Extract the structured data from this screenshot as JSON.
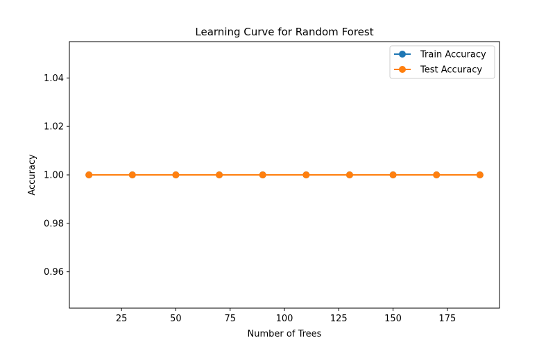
{
  "chart_data": {
    "type": "line",
    "title": "Learning Curve for Random Forest",
    "xlabel": "Number of Trees",
    "ylabel": "Accuracy",
    "x": [
      10,
      30,
      50,
      70,
      90,
      110,
      130,
      150,
      170,
      190
    ],
    "xlim": [
      1,
      199
    ],
    "ylim": [
      0.945,
      1.055
    ],
    "xticks": [
      25,
      50,
      75,
      100,
      125,
      150,
      175
    ],
    "xtick_labels": [
      "25",
      "50",
      "75",
      "100",
      "125",
      "150",
      "175"
    ],
    "yticks": [
      0.96,
      0.98,
      1.0,
      1.02,
      1.04
    ],
    "ytick_labels": [
      "0.96",
      "0.98",
      "1.00",
      "1.02",
      "1.04"
    ],
    "grid": false,
    "legend_position": "top-right",
    "series": [
      {
        "name": "Train Accuracy",
        "color": "#1f77b4",
        "marker": "circle",
        "values": [
          1.0,
          1.0,
          1.0,
          1.0,
          1.0,
          1.0,
          1.0,
          1.0,
          1.0,
          1.0
        ]
      },
      {
        "name": "Test Accuracy",
        "color": "#ff7f0e",
        "marker": "circle",
        "values": [
          1.0,
          1.0,
          1.0,
          1.0,
          1.0,
          1.0,
          1.0,
          1.0,
          1.0,
          1.0
        ]
      }
    ]
  }
}
